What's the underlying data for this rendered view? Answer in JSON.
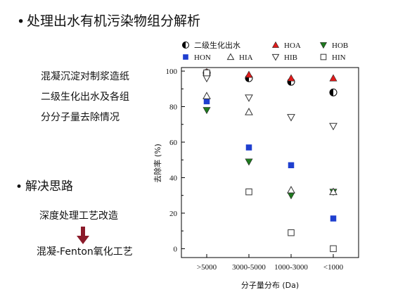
{
  "slide": {
    "title_bullet": "•",
    "title": "处理出水有机污染物组分解析",
    "desc_lines": [
      "混凝沉淀对制浆造纸",
      "二级生化出水及各组",
      "分分子量去除情况"
    ],
    "section_bullet": "•",
    "section_title": "解决思路",
    "step1": "深度处理工艺改造",
    "step2": "混凝-Fenton氧化工艺",
    "colors": {
      "arrow": "#8B1a2a"
    }
  },
  "chart_data": {
    "type": "scatter",
    "title": "",
    "xlabel": "分子量分布 (Da)",
    "ylabel": "去除率 (%)",
    "categories": [
      ">5000",
      "3000-5000",
      "1000-3000",
      "<1000"
    ],
    "ylim": [
      -5,
      102
    ],
    "yticks": [
      0,
      20,
      40,
      60,
      80,
      100
    ],
    "legend_position": "top",
    "series": [
      {
        "name": "二级生化出水",
        "marker": "half-circle",
        "color": "#000000",
        "values": [
          99,
          96,
          94,
          88
        ]
      },
      {
        "name": "HOA",
        "marker": "triangle-up",
        "color": "#e11b1b",
        "values": [
          99.5,
          98,
          96,
          96
        ]
      },
      {
        "name": "HOB",
        "marker": "triangle-down",
        "color": "#1e7a1e",
        "values": [
          78,
          49,
          30,
          32
        ]
      },
      {
        "name": "HON",
        "marker": "square",
        "color": "#1f3fcf",
        "values": [
          83,
          57,
          47,
          17
        ]
      },
      {
        "name": "HIA",
        "marker": "triangle-up-open",
        "color": "#333333",
        "values": [
          86,
          77,
          33,
          32
        ]
      },
      {
        "name": "HIB",
        "marker": "triangle-down-open",
        "color": "#333333",
        "values": [
          96,
          85,
          74,
          69
        ]
      },
      {
        "name": "HIN",
        "marker": "square-open",
        "color": "#333333",
        "values": [
          99,
          32,
          9,
          0
        ]
      }
    ]
  }
}
